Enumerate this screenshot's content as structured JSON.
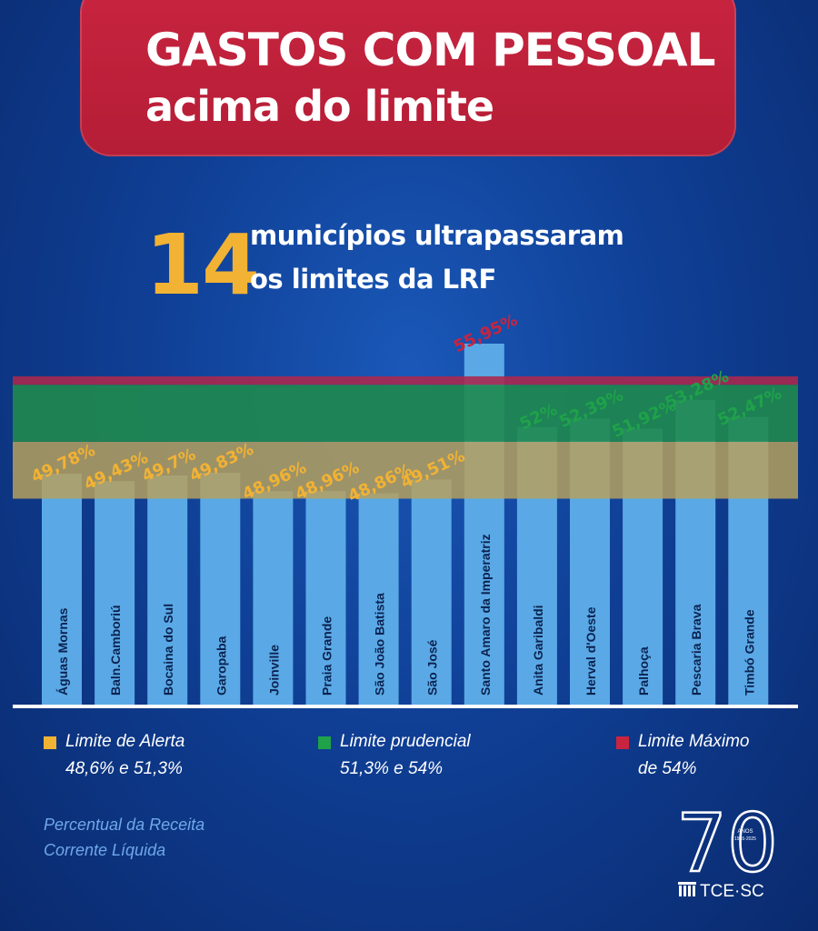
{
  "header": {
    "title_line1": "GASTOS COM PESSOAL",
    "title_line2": "acima do limite"
  },
  "headline": {
    "number": "14",
    "text_line1": "municípios ultrapassaram",
    "text_line2": "os limites da LRF"
  },
  "chart_data": {
    "type": "bar",
    "categories": [
      "Águas Mornas",
      "Baln.Camboriú",
      "Bocaina do Sul",
      "Garopaba",
      "Joinville",
      "Praia Grande",
      "São João Batista",
      "São José",
      "Santo Amaro da Imperatriz",
      "Anita Garibaldi",
      "Herval d'Oeste",
      "Palhoça",
      "Pescaria Brava",
      "Timbó Grande"
    ],
    "values": [
      49.78,
      49.43,
      49.7,
      49.83,
      48.96,
      48.96,
      48.86,
      49.51,
      55.95,
      52,
      52.39,
      51.92,
      53.28,
      52.47
    ],
    "value_labels": [
      "49,78%",
      "49,43%",
      "49,7%",
      "49,83%",
      "48,96%",
      "48,96%",
      "48,86%",
      "49,51%",
      "55,95%",
      "52%",
      "52,39%",
      "51,92%",
      "53,28%",
      "52,47%"
    ],
    "label_colors": [
      "#f2b233",
      "#f2b233",
      "#f2b233",
      "#f2b233",
      "#f2b233",
      "#f2b233",
      "#f2b233",
      "#f2b233",
      "#c8243f",
      "#1fa24a",
      "#1fa24a",
      "#1fa24a",
      "#1fa24a",
      "#1fa24a"
    ],
    "bands": [
      {
        "name": "Limite de Alerta",
        "from": 48.6,
        "to": 51.3,
        "color": "#b5a05e"
      },
      {
        "name": "Limite prudencial",
        "from": 51.3,
        "to": 54,
        "color": "#1f8a4e"
      },
      {
        "name": "Limite Máximo",
        "from": 54,
        "to": 54.4,
        "color": "#a8294f"
      }
    ],
    "bar_color": "#5aa9e6",
    "ylabel": ""
  },
  "legend": [
    {
      "label": "Limite de Alerta",
      "range": "48,6% e 51,3%",
      "color": "#f2b233"
    },
    {
      "label": "Limite prudencial",
      "range": "51,3% e 54%",
      "color": "#1fa24a"
    },
    {
      "label": "Limite Máximo",
      "range": "de 54%",
      "color": "#c8243f"
    }
  ],
  "footnote": {
    "line1": "Percentual da Receita",
    "line2": "Corrente Líquida"
  },
  "logo": {
    "number": "70",
    "anos": "ANOS",
    "years": "1955-2025",
    "org": "TCE·SC"
  }
}
